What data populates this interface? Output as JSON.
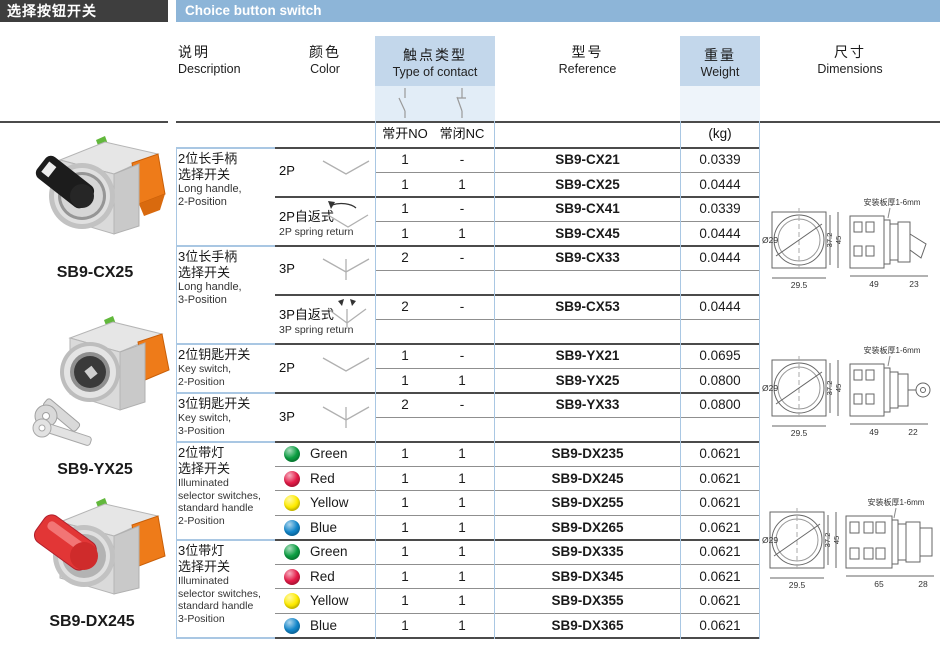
{
  "page": {
    "title_cn": "选择按钮开关",
    "title_en": "Choice button switch"
  },
  "colors": {
    "header_bar": "#8db5d8",
    "header_cell": "#c3d7eb",
    "title_box": "#3e3e3e",
    "green": "#0c9e42",
    "red": "#e41a47",
    "yellow": "#ffec00",
    "blue": "#1286ca"
  },
  "columns": {
    "description": {
      "cn": "说明",
      "en": "Description"
    },
    "color": {
      "cn": "颜色",
      "en": "Color"
    },
    "contact": {
      "cn": "触点类型",
      "en": "Type of contact",
      "no_label": "常开NO",
      "nc_label": "常闭NC"
    },
    "reference": {
      "cn": "型号",
      "en": "Reference"
    },
    "weight": {
      "cn": "重量",
      "en": "Weight",
      "unit": "(kg)"
    },
    "dimensions": {
      "cn": "尺寸",
      "en": "Dimensions"
    }
  },
  "products": [
    {
      "label": "SB9-CX25"
    },
    {
      "label": "SB9-YX25"
    },
    {
      "label": "SB9-DX245"
    }
  ],
  "desc_groups": [
    {
      "cn1": "2位长手柄",
      "cn2": "选择开关",
      "en1": "Long handle,",
      "en2": "2-Position",
      "en3": "",
      "en4": ""
    },
    {
      "cn1": "3位长手柄",
      "cn2": "选择开关",
      "en1": "Long handle,",
      "en2": "3-Position",
      "en3": "",
      "en4": ""
    },
    {
      "cn1": "2位钥匙开关",
      "cn2": "",
      "en1": "Key switch,",
      "en2": "2-Position",
      "en3": "",
      "en4": ""
    },
    {
      "cn1": "3位钥匙开关",
      "cn2": "",
      "en1": "Key switch,",
      "en2": "3-Position",
      "en3": "",
      "en4": ""
    },
    {
      "cn1": "2位带灯",
      "cn2": "选择开关",
      "en1": "Illuminated",
      "en2": "selector switches,",
      "en3": "standard handle",
      "en4": "2-Position"
    },
    {
      "cn1": "3位带灯",
      "cn2": "选择开关",
      "en1": "Illuminated",
      "en2": "selector switches,",
      "en3": "standard handle",
      "en4": "3-Position"
    }
  ],
  "pole_groups": [
    {
      "label": "2P",
      "sub": ""
    },
    {
      "label": "2P自返式",
      "sub": "2P spring return"
    },
    {
      "label": "3P",
      "sub": ""
    },
    {
      "label": "3P自返式",
      "sub": "3P spring return"
    },
    {
      "label": "2P",
      "sub": ""
    },
    {
      "label": "3P",
      "sub": ""
    }
  ],
  "color_rows": [
    {
      "name": "Green",
      "hex": "#0c9e42"
    },
    {
      "name": "Red",
      "hex": "#e41a47"
    },
    {
      "name": "Yellow",
      "hex": "#ffec00"
    },
    {
      "name": "Blue",
      "hex": "#1286ca"
    },
    {
      "name": "Green",
      "hex": "#0c9e42"
    },
    {
      "name": "Red",
      "hex": "#e41a47"
    },
    {
      "name": "Yellow",
      "hex": "#ffec00"
    },
    {
      "name": "Blue",
      "hex": "#1286ca"
    }
  ],
  "rows": [
    {
      "no": "1",
      "nc": "-",
      "ref": "SB9-CX21",
      "wt": "0.0339"
    },
    {
      "no": "1",
      "nc": "1",
      "ref": "SB9-CX25",
      "wt": "0.0444"
    },
    {
      "no": "1",
      "nc": "-",
      "ref": "SB9-CX41",
      "wt": "0.0339"
    },
    {
      "no": "1",
      "nc": "1",
      "ref": "SB9-CX45",
      "wt": "0.0444"
    },
    {
      "no": "2",
      "nc": "-",
      "ref": "SB9-CX33",
      "wt": "0.0444"
    },
    {
      "no": "",
      "nc": "",
      "ref": "",
      "wt": ""
    },
    {
      "no": "2",
      "nc": "-",
      "ref": "SB9-CX53",
      "wt": "0.0444"
    },
    {
      "no": "",
      "nc": "",
      "ref": "",
      "wt": ""
    },
    {
      "no": "1",
      "nc": "-",
      "ref": "SB9-YX21",
      "wt": "0.0695"
    },
    {
      "no": "1",
      "nc": "1",
      "ref": "SB9-YX25",
      "wt": "0.0800"
    },
    {
      "no": "2",
      "nc": "-",
      "ref": "SB9-YX33",
      "wt": "0.0800"
    },
    {
      "no": "",
      "nc": "",
      "ref": "",
      "wt": ""
    },
    {
      "no": "1",
      "nc": "1",
      "ref": "SB9-DX235",
      "wt": "0.0621"
    },
    {
      "no": "1",
      "nc": "1",
      "ref": "SB9-DX245",
      "wt": "0.0621"
    },
    {
      "no": "1",
      "nc": "1",
      "ref": "SB9-DX255",
      "wt": "0.0621"
    },
    {
      "no": "1",
      "nc": "1",
      "ref": "SB9-DX265",
      "wt": "0.0621"
    },
    {
      "no": "1",
      "nc": "1",
      "ref": "SB9-DX335",
      "wt": "0.0621"
    },
    {
      "no": "1",
      "nc": "1",
      "ref": "SB9-DX345",
      "wt": "0.0621"
    },
    {
      "no": "1",
      "nc": "1",
      "ref": "SB9-DX355",
      "wt": "0.0621"
    },
    {
      "no": "1",
      "nc": "1",
      "ref": "SB9-DX365",
      "wt": "0.0621"
    }
  ],
  "dims": [
    {
      "plate": "安装板厚1-6mm",
      "dia": "Ø29",
      "front_h_inner": "37.2",
      "front_h_outer": "45",
      "front_w": "29.5",
      "len_body": "49",
      "len_head": "23"
    },
    {
      "plate": "安装板厚1-6mm",
      "dia": "Ø29",
      "front_h_inner": "37.2",
      "front_h_outer": "45",
      "front_w": "29.5",
      "len_body": "49",
      "len_head": "22"
    },
    {
      "plate": "安装板厚1-6mm",
      "dia": "Ø29",
      "front_h_inner": "37.2",
      "front_h_outer": "45",
      "front_w": "29.5",
      "len_body": "65",
      "len_head": "28"
    }
  ]
}
